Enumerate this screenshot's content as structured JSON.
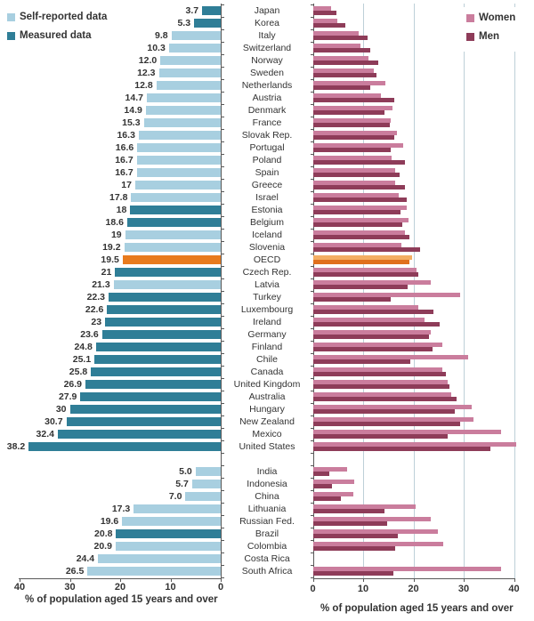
{
  "legend_left": {
    "items": [
      {
        "label": "Self-reported data",
        "key": "self"
      },
      {
        "label": "Measured data",
        "key": "measured"
      }
    ]
  },
  "legend_right": {
    "items": [
      {
        "label": "Women",
        "key": "women"
      },
      {
        "label": "Men",
        "key": "men"
      }
    ]
  },
  "axes": {
    "left": {
      "ticks": [
        40,
        30,
        20,
        10,
        0
      ],
      "title": "% of population aged 15 years and over"
    },
    "right": {
      "ticks": [
        0,
        10,
        20,
        30,
        40
      ],
      "title": "% of population aged 15 years and over"
    }
  },
  "colors": {
    "self": "#a8cfe0",
    "measured": "#2f7e97",
    "oecd": "#e87b1e",
    "women": "#ca7d9d",
    "men": "#8e3c59",
    "oecd_women": "#f3ae63",
    "oecd_men": "#e0701d",
    "gridline": "#bdd0d8",
    "axis": "#595959",
    "text": "#333333"
  },
  "chart_data": {
    "type": "bar",
    "title": "",
    "xlabel_left": "% of population aged 15 years and over",
    "xlabel_right": "% of population aged 15 years and over",
    "xlim_left": [
      40,
      0
    ],
    "xlim_right": [
      0,
      40
    ],
    "grid": "right-panel-vertical",
    "legend_position": "top-left and top-right",
    "series": [
      "Total (self-reported or measured)",
      "Women",
      "Men"
    ],
    "countries": [
      {
        "name": "Japan",
        "total": 3.7,
        "total_label": "3.7",
        "method": "measured",
        "women": 3.5,
        "men": 4.6,
        "group": 1
      },
      {
        "name": "Korea",
        "total": 5.3,
        "total_label": "5.3",
        "method": "measured",
        "women": 4.8,
        "men": 6.3,
        "group": 1
      },
      {
        "name": "Italy",
        "total": 9.8,
        "total_label": "9.8",
        "method": "self",
        "women": 9.0,
        "men": 10.8,
        "group": 1
      },
      {
        "name": "Switzerland",
        "total": 10.3,
        "total_label": "10.3",
        "method": "self",
        "women": 9.3,
        "men": 11.3,
        "group": 1
      },
      {
        "name": "Norway",
        "total": 12.0,
        "total_label": "12.0",
        "method": "self",
        "women": 11.0,
        "men": 13.0,
        "group": 1
      },
      {
        "name": "Sweden",
        "total": 12.3,
        "total_label": "12.3",
        "method": "self",
        "women": 12.0,
        "men": 12.5,
        "group": 1
      },
      {
        "name": "Netherlands",
        "total": 12.8,
        "total_label": "12.8",
        "method": "self",
        "women": 14.3,
        "men": 11.3,
        "group": 1
      },
      {
        "name": "Austria",
        "total": 14.7,
        "total_label": "14.7",
        "method": "self",
        "women": 13.5,
        "men": 16.1,
        "group": 1
      },
      {
        "name": "Denmark",
        "total": 14.9,
        "total_label": "14.9",
        "method": "self",
        "women": 15.7,
        "men": 14.2,
        "group": 1
      },
      {
        "name": "France",
        "total": 15.3,
        "total_label": "15.3",
        "method": "self",
        "women": 15.4,
        "men": 15.3,
        "group": 1
      },
      {
        "name": "Slovak Rep.",
        "total": 16.3,
        "total_label": "16.3",
        "method": "self",
        "women": 16.6,
        "men": 16.1,
        "group": 1
      },
      {
        "name": "Portugal",
        "total": 16.6,
        "total_label": "16.6",
        "method": "self",
        "women": 17.8,
        "men": 15.4,
        "group": 1
      },
      {
        "name": "Poland",
        "total": 16.7,
        "total_label": "16.7",
        "method": "self",
        "women": 15.6,
        "men": 18.2,
        "group": 1
      },
      {
        "name": "Spain",
        "total": 16.7,
        "total_label": "16.7",
        "method": "self",
        "women": 16.2,
        "men": 17.1,
        "group": 1
      },
      {
        "name": "Greece",
        "total": 17,
        "total_label": "17",
        "method": "self",
        "women": 16.2,
        "men": 18.2,
        "group": 1
      },
      {
        "name": "Israel",
        "total": 17.8,
        "total_label": "17.8",
        "method": "self",
        "women": 17.0,
        "men": 18.5,
        "group": 1
      },
      {
        "name": "Estonia",
        "total": 18,
        "total_label": "18",
        "method": "measured",
        "women": 18.6,
        "men": 17.3,
        "group": 1
      },
      {
        "name": "Belgium",
        "total": 18.6,
        "total_label": "18.6",
        "method": "measured",
        "women": 19.0,
        "men": 17.7,
        "group": 1
      },
      {
        "name": "Iceland",
        "total": 19,
        "total_label": "19",
        "method": "self",
        "women": 18.2,
        "men": 19.2,
        "group": 1
      },
      {
        "name": "Slovenia",
        "total": 19.2,
        "total_label": "19.2",
        "method": "self",
        "women": 17.5,
        "men": 21.3,
        "group": 1
      },
      {
        "name": "OECD",
        "total": 19.5,
        "total_label": "19.5",
        "method": "oecd",
        "women": 19.6,
        "men": 19.1,
        "group": 1
      },
      {
        "name": "Czech Rep.",
        "total": 21,
        "total_label": "21",
        "method": "measured",
        "women": 20.5,
        "men": 20.9,
        "group": 1
      },
      {
        "name": "Latvia",
        "total": 21.3,
        "total_label": "21.3",
        "method": "self",
        "women": 23.4,
        "men": 18.7,
        "group": 1
      },
      {
        "name": "Turkey",
        "total": 22.3,
        "total_label": "22.3",
        "method": "measured",
        "women": 29.2,
        "men": 15.4,
        "group": 1
      },
      {
        "name": "Luxembourg",
        "total": 22.6,
        "total_label": "22.6",
        "method": "measured",
        "women": 20.9,
        "men": 23.9,
        "group": 1
      },
      {
        "name": "Ireland",
        "total": 23,
        "total_label": "23",
        "method": "measured",
        "women": 22.2,
        "men": 25.2,
        "group": 1
      },
      {
        "name": "Germany",
        "total": 23.6,
        "total_label": "23.6",
        "method": "measured",
        "women": 23.4,
        "men": 23.0,
        "group": 1
      },
      {
        "name": "Finland",
        "total": 24.8,
        "total_label": "24.8",
        "method": "measured",
        "women": 25.7,
        "men": 23.7,
        "group": 1
      },
      {
        "name": "Chile",
        "total": 25.1,
        "total_label": "25.1",
        "method": "measured",
        "women": 30.8,
        "men": 19.3,
        "group": 1
      },
      {
        "name": "Canada",
        "total": 25.8,
        "total_label": "25.8",
        "method": "measured",
        "women": 25.7,
        "men": 26.3,
        "group": 1
      },
      {
        "name": "United Kingdom",
        "total": 26.9,
        "total_label": "26.9",
        "method": "measured",
        "women": 26.8,
        "men": 27.0,
        "group": 1
      },
      {
        "name": "Australia",
        "total": 27.9,
        "total_label": "27.9",
        "method": "measured",
        "women": 27.5,
        "men": 28.5,
        "group": 1
      },
      {
        "name": "Hungary",
        "total": 30,
        "total_label": "30",
        "method": "measured",
        "women": 31.5,
        "men": 28.2,
        "group": 1
      },
      {
        "name": "New Zealand",
        "total": 30.7,
        "total_label": "30.7",
        "method": "measured",
        "women": 31.9,
        "men": 29.2,
        "group": 1
      },
      {
        "name": "Mexico",
        "total": 32.4,
        "total_label": "32.4",
        "method": "measured",
        "women": 37.4,
        "men": 26.8,
        "group": 1
      },
      {
        "name": "United States",
        "total": 38.2,
        "total_label": "38.2",
        "method": "measured",
        "women": 40.3,
        "men": 35.2,
        "group": 1
      },
      {
        "name": "India",
        "total": 5.0,
        "total_label": "5.0",
        "method": "self",
        "women": 6.8,
        "men": 3.2,
        "group": 2
      },
      {
        "name": "Indonesia",
        "total": 5.7,
        "total_label": "5.7",
        "method": "self",
        "women": 8.1,
        "men": 3.7,
        "group": 2
      },
      {
        "name": "China",
        "total": 7.0,
        "total_label": "7.0",
        "method": "self",
        "women": 8.0,
        "men": 5.5,
        "group": 2
      },
      {
        "name": "Lithuania",
        "total": 17.3,
        "total_label": "17.3",
        "method": "self",
        "women": 20.3,
        "men": 14.2,
        "group": 2
      },
      {
        "name": "Russian Fed.",
        "total": 19.6,
        "total_label": "19.6",
        "method": "self",
        "women": 23.3,
        "men": 14.7,
        "group": 2
      },
      {
        "name": "Brazil",
        "total": 20.8,
        "total_label": "20.8",
        "method": "measured",
        "women": 24.7,
        "men": 16.9,
        "group": 2
      },
      {
        "name": "Colombia",
        "total": 20.9,
        "total_label": "20.9",
        "method": "self",
        "women": 25.9,
        "men": 16.2,
        "group": 2
      },
      {
        "name": "Costa Rica",
        "total": 24.4,
        "total_label": "24.4",
        "method": "self",
        "women": null,
        "men": null,
        "group": 2
      },
      {
        "name": "South Africa",
        "total": 26.5,
        "total_label": "26.5",
        "method": "self",
        "women": 37.3,
        "men": 15.9,
        "group": 2
      }
    ]
  }
}
